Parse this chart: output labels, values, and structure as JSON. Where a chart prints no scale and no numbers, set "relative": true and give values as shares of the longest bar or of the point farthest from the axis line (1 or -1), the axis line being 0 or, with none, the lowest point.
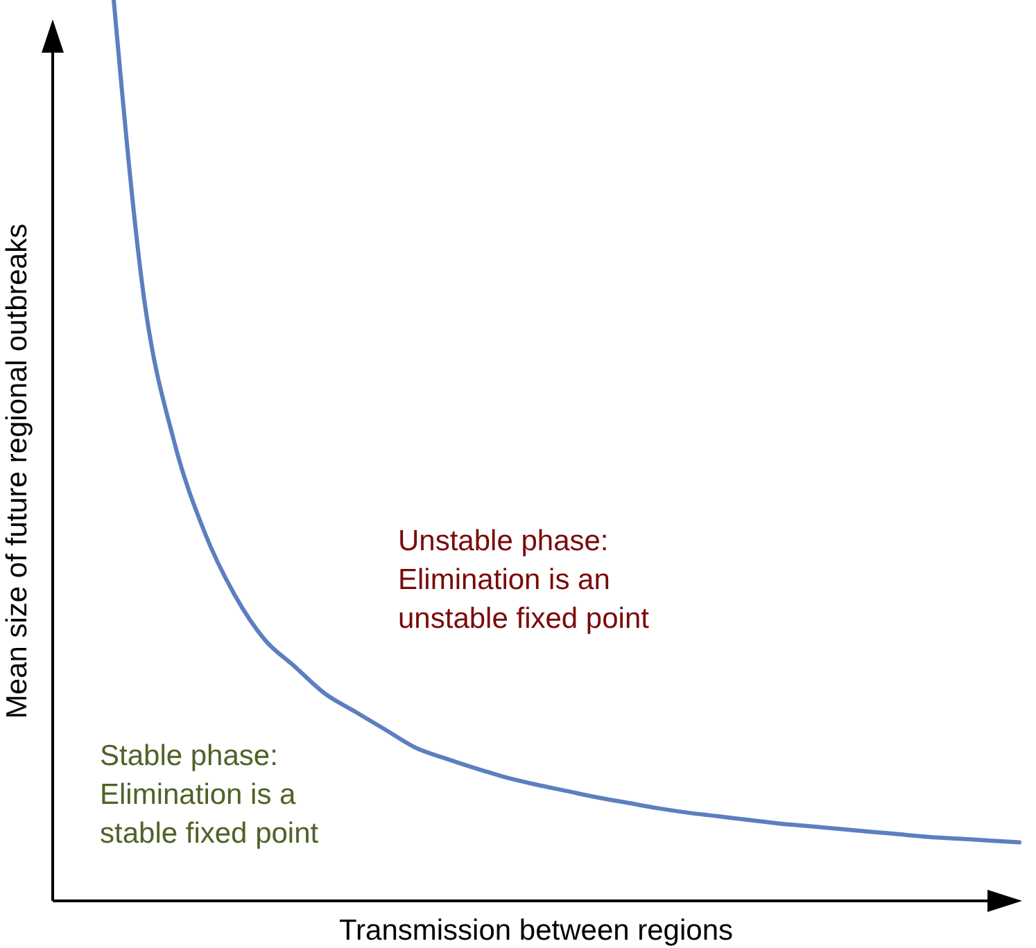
{
  "chart_data": {
    "type": "line",
    "relative": true,
    "xlabel": "Transmission between regions",
    "ylabel": "Mean size of future regional outbreaks",
    "categories": [
      null,
      null,
      null,
      null,
      null,
      null,
      null,
      null,
      null,
      null,
      null,
      null,
      null,
      null,
      null,
      null,
      null,
      null,
      null,
      null,
      null,
      null,
      null,
      null,
      null,
      null,
      null,
      null,
      null,
      null,
      null
    ],
    "series": [
      {
        "color": "#5b7fbf",
        "values": [
          1.0,
          0.67,
          0.51,
          0.41,
          0.34,
          0.29,
          0.26,
          0.23,
          0.21,
          0.19,
          0.17,
          0.158,
          0.147,
          0.137,
          0.129,
          0.122,
          0.115,
          0.109,
          0.103,
          0.098,
          0.094,
          0.09,
          0.086,
          0.083,
          0.08,
          0.077,
          0.074,
          0.071,
          0.069,
          0.067,
          0.065
        ]
      }
    ],
    "annotations": [
      "Unstable phase:\nElimination is an\nunstable fixed point",
      "Stable phase:\nElimination is a\nstable fixed point"
    ],
    "marker": "none",
    "line_style": "solid"
  }
}
